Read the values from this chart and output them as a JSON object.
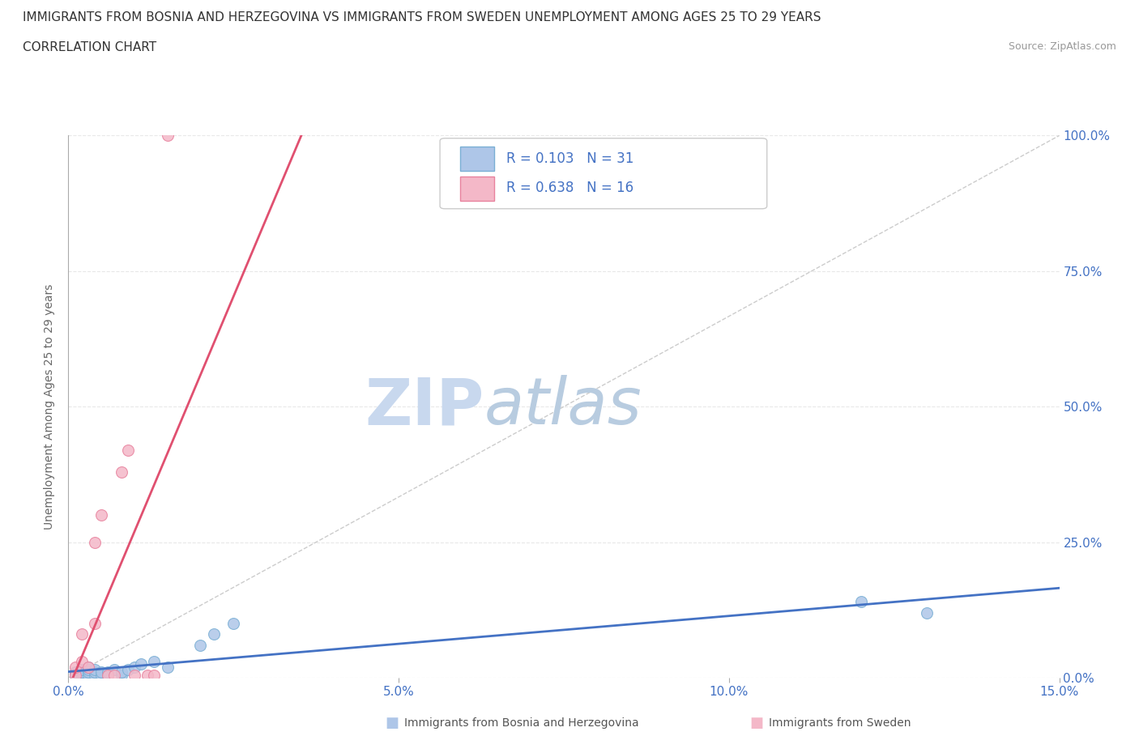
{
  "title": "IMMIGRANTS FROM BOSNIA AND HERZEGOVINA VS IMMIGRANTS FROM SWEDEN UNEMPLOYMENT AMONG AGES 25 TO 29 YEARS",
  "subtitle": "CORRELATION CHART",
  "source": "Source: ZipAtlas.com",
  "ylabel": "Unemployment Among Ages 25 to 29 years",
  "xlim": [
    0.0,
    0.15
  ],
  "ylim": [
    0.0,
    1.0
  ],
  "xticks": [
    0.0,
    0.05,
    0.1,
    0.15
  ],
  "xtick_labels": [
    "0.0%",
    "5.0%",
    "10.0%",
    "15.0%"
  ],
  "yticks": [
    0.0,
    0.25,
    0.5,
    0.75,
    1.0
  ],
  "ytick_labels": [
    "0.0%",
    "25.0%",
    "50.0%",
    "75.0%",
    "100.0%"
  ],
  "series1_color": "#aec6e8",
  "series1_edge": "#7aafd4",
  "series2_color": "#f4b8c8",
  "series2_edge": "#e8829e",
  "reg1_color": "#4472c4",
  "reg2_color": "#e05070",
  "diag_color": "#cccccc",
  "watermark_zip": "ZIP",
  "watermark_atlas": "atlas",
  "watermark_color_zip": "#c8d8ee",
  "watermark_color_atlas": "#b8cce0",
  "legend_text_color": "#4472c4",
  "tick_color": "#4472c4",
  "grid_color": "#e8e8e8",
  "series1_x": [
    0.001,
    0.001,
    0.001,
    0.002,
    0.002,
    0.002,
    0.002,
    0.003,
    0.003,
    0.003,
    0.003,
    0.004,
    0.004,
    0.004,
    0.005,
    0.005,
    0.006,
    0.006,
    0.007,
    0.008,
    0.008,
    0.009,
    0.01,
    0.011,
    0.013,
    0.015,
    0.02,
    0.022,
    0.025,
    0.12,
    0.13
  ],
  "series1_y": [
    0.005,
    0.008,
    0.01,
    0.005,
    0.008,
    0.01,
    0.015,
    0.005,
    0.01,
    0.015,
    0.02,
    0.005,
    0.01,
    0.015,
    0.005,
    0.01,
    0.005,
    0.01,
    0.015,
    0.005,
    0.01,
    0.015,
    0.02,
    0.025,
    0.03,
    0.02,
    0.06,
    0.08,
    0.1,
    0.14,
    0.12
  ],
  "series2_x": [
    0.001,
    0.001,
    0.002,
    0.002,
    0.003,
    0.004,
    0.004,
    0.005,
    0.006,
    0.007,
    0.008,
    0.009,
    0.01,
    0.012,
    0.013,
    0.015
  ],
  "series2_y": [
    0.005,
    0.02,
    0.03,
    0.08,
    0.02,
    0.1,
    0.25,
    0.3,
    0.005,
    0.005,
    0.38,
    0.42,
    0.005,
    0.005,
    0.005,
    1.0
  ]
}
